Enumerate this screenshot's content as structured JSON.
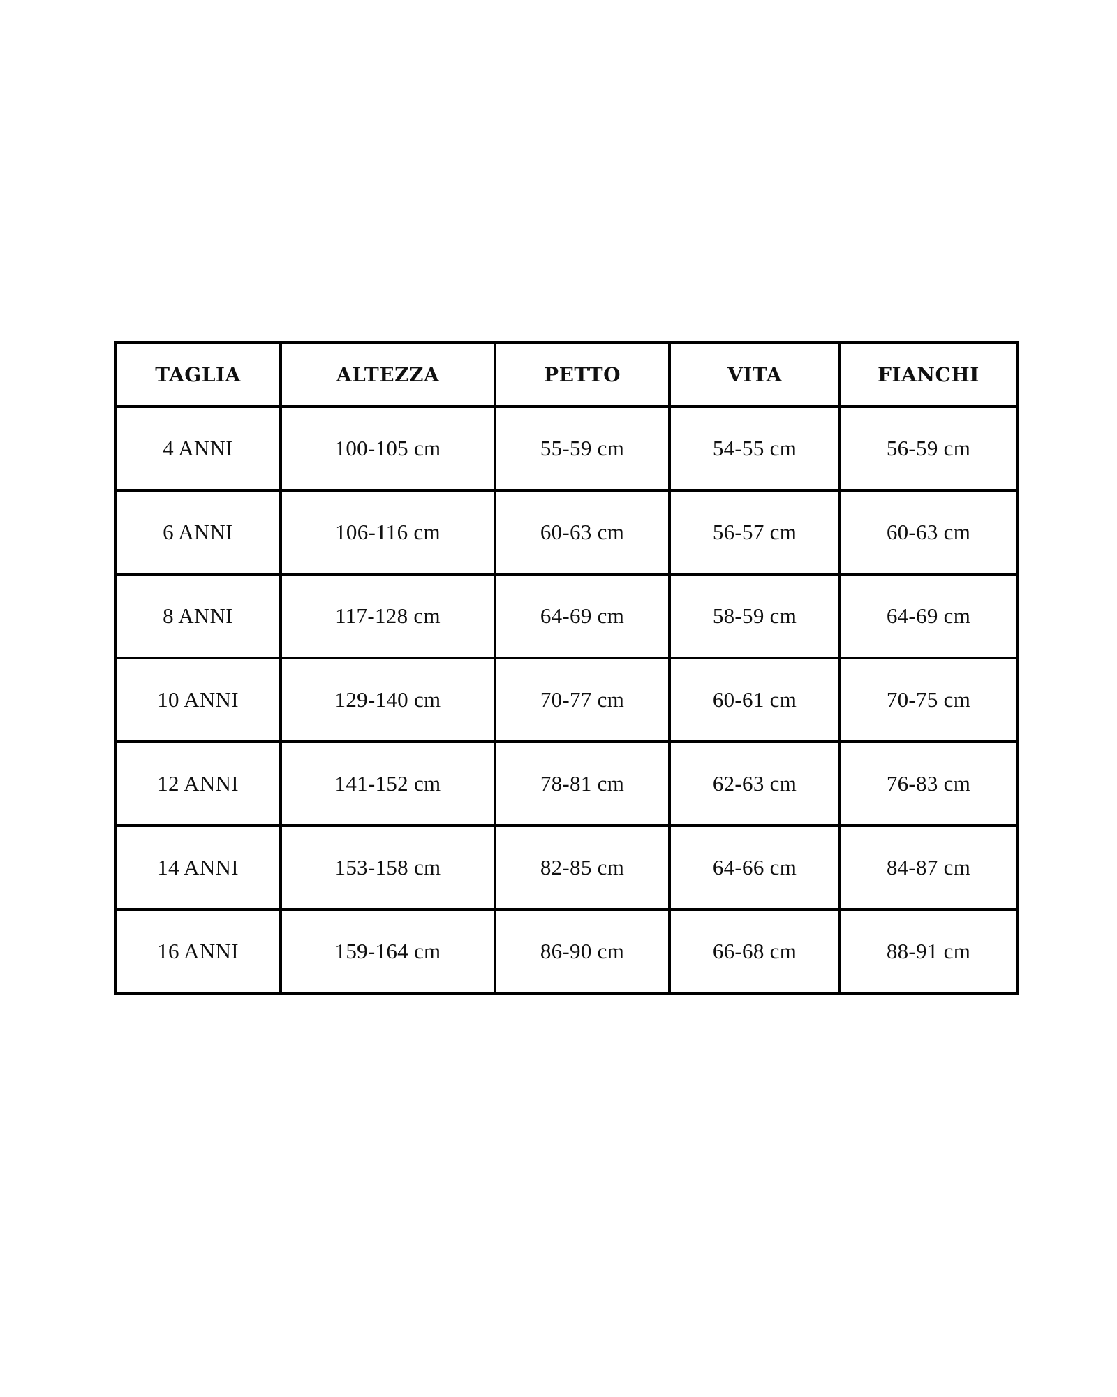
{
  "table": {
    "name": "size-chart",
    "headers": [
      "TAGLIA",
      "ALTEZZA",
      "PETTO",
      "VITA",
      "FIANCHI"
    ],
    "rows": [
      [
        "4 ANNI",
        "100-105 cm",
        "55-59 cm",
        "54-55 cm",
        "56-59 cm"
      ],
      [
        "6 ANNI",
        "106-116 cm",
        "60-63 cm",
        "56-57 cm",
        "60-63 cm"
      ],
      [
        "8 ANNI",
        "117-128 cm",
        "64-69 cm",
        "58-59 cm",
        "64-69 cm"
      ],
      [
        "10 ANNI",
        "129-140 cm",
        "70-77 cm",
        "60-61 cm",
        "70-75 cm"
      ],
      [
        "12 ANNI",
        "141-152 cm",
        "78-81 cm",
        "62-63 cm",
        "76-83 cm"
      ],
      [
        "14 ANNI",
        "153-158 cm",
        "82-85 cm",
        "64-66 cm",
        "84-87 cm"
      ],
      [
        "16 ANNI",
        "159-164 cm",
        "86-90 cm",
        "66-68 cm",
        "88-91 cm"
      ]
    ],
    "colors": {
      "border": "#000000",
      "text": "#101010",
      "background": "#ffffff"
    }
  }
}
